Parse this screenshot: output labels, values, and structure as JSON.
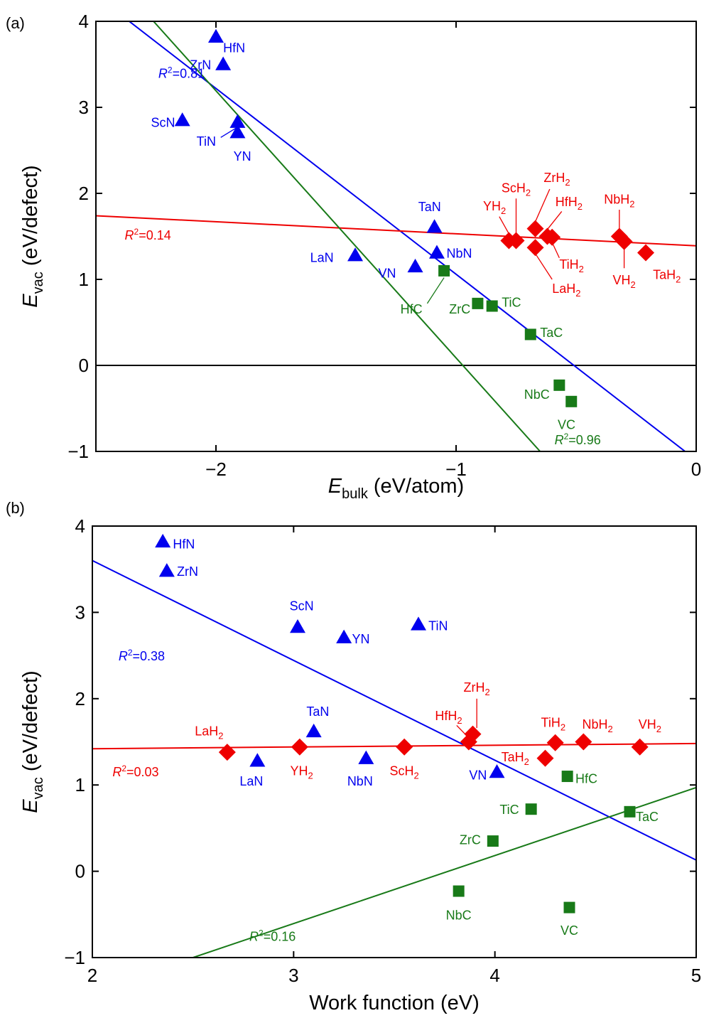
{
  "colors": {
    "nitride": "#0000ee",
    "hydride": "#ee0000",
    "carbide": "#187a18"
  },
  "chart_data": [
    {
      "panel": "(a)",
      "type": "scatter",
      "xlabel_main": "E",
      "xlabel_sub": "bulk",
      "xlabel_unit": " (eV/atom)",
      "ylabel_main": "E",
      "ylabel_sub": "vac",
      "ylabel_unit": " (eV/defect)",
      "xlim": [
        -2.5,
        0
      ],
      "ylim": [
        -1,
        4
      ],
      "xticks": [
        {
          "v": -2,
          "t": "−2"
        },
        {
          "v": -1,
          "t": "−1"
        },
        {
          "v": 0,
          "t": "0"
        }
      ],
      "yticks": [
        {
          "v": -1,
          "t": "−1"
        },
        {
          "v": 0,
          "t": "0"
        },
        {
          "v": 1,
          "t": "1"
        },
        {
          "v": 2,
          "t": "2"
        },
        {
          "v": 3,
          "t": "3"
        },
        {
          "v": 4,
          "t": "4"
        }
      ],
      "zero_line": true,
      "series": [
        {
          "group": "nitride",
          "marker": "triangle",
          "fit": [
            -2.5,
            4.3,
            0,
            -1.1
          ],
          "r2": "0.81",
          "r2_pos": [
            -2.24,
            3.4
          ],
          "points": [
            {
              "label": "HfN",
              "x": -2.0,
              "y": 3.82,
              "lx": -1.97,
              "ly": 3.7,
              "anchor": "start"
            },
            {
              "label": "ZrN",
              "x": -1.97,
              "y": 3.5,
              "lx": -2.02,
              "ly": 3.5,
              "anchor": "end"
            },
            {
              "label": "ScN",
              "x": -2.14,
              "y": 2.85,
              "lx": -2.17,
              "ly": 2.83,
              "anchor": "end"
            },
            {
              "label": "TiN",
              "x": -1.91,
              "y": 2.83,
              "lx": -2.0,
              "ly": 2.61,
              "anchor": "end",
              "leader": [
                -1.98,
                2.65,
                -1.91,
                2.77
              ]
            },
            {
              "label": "YN",
              "x": -1.91,
              "y": 2.71,
              "lx": -1.89,
              "ly": 2.44,
              "anchor": "middle"
            },
            {
              "label": "TaN",
              "x": -1.09,
              "y": 1.61,
              "lx": -1.11,
              "ly": 1.85,
              "anchor": "middle"
            },
            {
              "label": "LaN",
              "x": -1.42,
              "y": 1.28,
              "lx": -1.51,
              "ly": 1.26,
              "anchor": "end"
            },
            {
              "label": "NbN",
              "x": -1.08,
              "y": 1.31,
              "lx": -1.04,
              "ly": 1.31,
              "anchor": "start"
            },
            {
              "label": "VN",
              "x": -1.17,
              "y": 1.15,
              "lx": -1.25,
              "ly": 1.08,
              "anchor": "end"
            }
          ]
        },
        {
          "group": "hydride",
          "marker": "diamond",
          "fit": [
            -2.5,
            1.74,
            0,
            1.39
          ],
          "r2": "0.14",
          "r2_pos": [
            -2.38,
            1.52
          ],
          "points": [
            {
              "label": "YH",
              "sub": "2",
              "x": -0.78,
              "y": 1.45,
              "lx": -0.84,
              "ly": 1.86,
              "anchor": "middle",
              "leader": [
                -0.82,
                1.73,
                -0.78,
                1.53
              ]
            },
            {
              "label": "ScH",
              "sub": "2",
              "x": -0.75,
              "y": 1.45,
              "lx": -0.75,
              "ly": 2.07,
              "anchor": "middle",
              "leader": [
                -0.75,
                1.94,
                -0.75,
                1.53
              ]
            },
            {
              "label": "ZrH",
              "sub": "2",
              "x": -0.67,
              "y": 1.59,
              "lx": -0.58,
              "ly": 2.19,
              "anchor": "middle",
              "leader": [
                -0.61,
                2.05,
                -0.67,
                1.67
              ]
            },
            {
              "label": "LaH",
              "sub": "2",
              "x": -0.67,
              "y": 1.37,
              "lx": -0.6,
              "ly": 0.9,
              "anchor": "start",
              "leader": [
                -0.6,
                1.0,
                -0.67,
                1.3
              ]
            },
            {
              "label": "HfH",
              "sub": "2",
              "x": -0.62,
              "y": 1.5,
              "lx": -0.53,
              "ly": 1.91,
              "anchor": "middle",
              "leader": [
                -0.56,
                1.79,
                -0.62,
                1.58
              ]
            },
            {
              "label": "TiH",
              "sub": "2",
              "x": -0.6,
              "y": 1.49,
              "lx": -0.57,
              "ly": 1.18,
              "anchor": "start",
              "leader": [
                -0.57,
                1.25,
                -0.6,
                1.43
              ]
            },
            {
              "label": "NbH",
              "sub": "2",
              "x": -0.32,
              "y": 1.5,
              "lx": -0.32,
              "ly": 1.94,
              "anchor": "middle",
              "leader": [
                -0.32,
                1.81,
                -0.32,
                1.58
              ]
            },
            {
              "label": "VH",
              "sub": "2",
              "x": -0.3,
              "y": 1.44,
              "lx": -0.3,
              "ly": 1.0,
              "anchor": "middle",
              "leader": [
                -0.3,
                1.13,
                -0.3,
                1.37
              ]
            },
            {
              "label": "TaH",
              "sub": "2",
              "x": -0.21,
              "y": 1.31,
              "lx": -0.18,
              "ly": 1.06,
              "anchor": "start"
            }
          ]
        },
        {
          "group": "carbide",
          "marker": "square",
          "fit": [
            -2.26,
            4.0,
            -0.65,
            -1.0
          ],
          "r2": "0.96",
          "r2_pos": [
            -0.59,
            -0.86
          ],
          "points": [
            {
              "label": "HfC",
              "x": -1.05,
              "y": 1.1,
              "lx": -1.14,
              "ly": 0.66,
              "anchor": "end",
              "leader": [
                -1.12,
                0.72,
                -1.05,
                1.02
              ]
            },
            {
              "label": "ZrC",
              "x": -0.91,
              "y": 0.72,
              "lx": -0.94,
              "ly": 0.66,
              "anchor": "end"
            },
            {
              "label": "TiC",
              "x": -0.85,
              "y": 0.69,
              "lx": -0.81,
              "ly": 0.74,
              "anchor": "start"
            },
            {
              "label": "TaC",
              "x": -0.69,
              "y": 0.36,
              "lx": -0.65,
              "ly": 0.39,
              "anchor": "start"
            },
            {
              "label": "NbC",
              "x": -0.57,
              "y": -0.23,
              "lx": -0.61,
              "ly": -0.33,
              "anchor": "end"
            },
            {
              "label": "VC",
              "x": -0.52,
              "y": -0.42,
              "lx": -0.54,
              "ly": -0.68,
              "anchor": "middle"
            }
          ]
        }
      ]
    },
    {
      "panel": "(b)",
      "type": "scatter",
      "xlabel_main": "Work function (eV)",
      "xlabel_sub": "",
      "xlabel_unit": "",
      "ylabel_main": "E",
      "ylabel_sub": "vac",
      "ylabel_unit": " (eV/defect)",
      "xlim": [
        2,
        5
      ],
      "ylim": [
        -1,
        4
      ],
      "xticks": [
        {
          "v": 2,
          "t": "2"
        },
        {
          "v": 3,
          "t": "3"
        },
        {
          "v": 4,
          "t": "4"
        },
        {
          "v": 5,
          "t": "5"
        }
      ],
      "yticks": [
        {
          "v": -1,
          "t": "−1"
        },
        {
          "v": 0,
          "t": "0"
        },
        {
          "v": 1,
          "t": "1"
        },
        {
          "v": 2,
          "t": "2"
        },
        {
          "v": 3,
          "t": "3"
        },
        {
          "v": 4,
          "t": "4"
        }
      ],
      "zero_line": false,
      "series": [
        {
          "group": "nitride",
          "marker": "triangle",
          "fit": [
            2,
            3.6,
            5,
            0.13
          ],
          "r2": "0.38",
          "r2_pos": [
            2.13,
            2.5
          ],
          "points": [
            {
              "label": "HfN",
              "x": 2.35,
              "y": 3.82,
              "lx": 2.4,
              "ly": 3.8,
              "anchor": "start"
            },
            {
              "label": "ZrN",
              "x": 2.37,
              "y": 3.48,
              "lx": 2.42,
              "ly": 3.48,
              "anchor": "start"
            },
            {
              "label": "ScN",
              "x": 3.02,
              "y": 2.83,
              "lx": 3.04,
              "ly": 3.08,
              "anchor": "middle"
            },
            {
              "label": "YN",
              "x": 3.25,
              "y": 2.71,
              "lx": 3.29,
              "ly": 2.7,
              "anchor": "start"
            },
            {
              "label": "TiN",
              "x": 3.62,
              "y": 2.86,
              "lx": 3.67,
              "ly": 2.85,
              "anchor": "start"
            },
            {
              "label": "TaN",
              "x": 3.1,
              "y": 1.62,
              "lx": 3.12,
              "ly": 1.86,
              "anchor": "middle"
            },
            {
              "label": "LaN",
              "x": 2.82,
              "y": 1.28,
              "lx": 2.79,
              "ly": 1.05,
              "anchor": "middle"
            },
            {
              "label": "NbN",
              "x": 3.36,
              "y": 1.31,
              "lx": 3.33,
              "ly": 1.05,
              "anchor": "middle"
            },
            {
              "label": "VN",
              "x": 4.01,
              "y": 1.15,
              "lx": 3.96,
              "ly": 1.12,
              "anchor": "end"
            }
          ]
        },
        {
          "group": "hydride",
          "marker": "diamond",
          "fit": [
            2,
            1.42,
            5,
            1.48
          ],
          "r2": "0.03",
          "r2_pos": [
            2.1,
            1.16
          ],
          "points": [
            {
              "label": "LaH",
              "sub": "2",
              "x": 2.67,
              "y": 1.38,
              "lx": 2.58,
              "ly": 1.63,
              "anchor": "middle"
            },
            {
              "label": "YH",
              "sub": "2",
              "x": 3.03,
              "y": 1.44,
              "lx": 3.04,
              "ly": 1.17,
              "anchor": "middle"
            },
            {
              "label": "ScH",
              "sub": "2",
              "x": 3.55,
              "y": 1.44,
              "lx": 3.55,
              "ly": 1.17,
              "anchor": "middle"
            },
            {
              "label": "HfH",
              "sub": "2",
              "x": 3.87,
              "y": 1.5,
              "lx": 3.77,
              "ly": 1.81,
              "anchor": "middle",
              "leader": [
                3.81,
                1.69,
                3.86,
                1.57
              ]
            },
            {
              "label": "ZrH",
              "sub": "2",
              "x": 3.89,
              "y": 1.59,
              "lx": 3.91,
              "ly": 2.14,
              "anchor": "middle",
              "leader": [
                3.91,
                2.0,
                3.91,
                1.66
              ]
            },
            {
              "label": "TaH",
              "sub": "2",
              "x": 4.25,
              "y": 1.31,
              "lx": 4.17,
              "ly": 1.33,
              "anchor": "end"
            },
            {
              "label": "TiH",
              "sub": "2",
              "x": 4.3,
              "y": 1.49,
              "lx": 4.29,
              "ly": 1.73,
              "anchor": "middle"
            },
            {
              "label": "NbH",
              "sub": "2",
              "x": 4.44,
              "y": 1.5,
              "lx": 4.51,
              "ly": 1.71,
              "anchor": "middle"
            },
            {
              "label": "VH",
              "sub": "2",
              "x": 4.72,
              "y": 1.44,
              "lx": 4.77,
              "ly": 1.71,
              "anchor": "middle"
            }
          ]
        },
        {
          "group": "carbide",
          "marker": "square",
          "fit": [
            2.5,
            -1.0,
            5,
            0.97
          ],
          "r2": "0.16",
          "r2_pos": [
            2.78,
            -0.75
          ],
          "points": [
            {
              "label": "HfC",
              "x": 4.36,
              "y": 1.1,
              "lx": 4.4,
              "ly": 1.08,
              "anchor": "start"
            },
            {
              "label": "TiC",
              "x": 4.18,
              "y": 0.72,
              "lx": 4.12,
              "ly": 0.72,
              "anchor": "end"
            },
            {
              "label": "TaC",
              "x": 4.67,
              "y": 0.69,
              "lx": 4.7,
              "ly": 0.64,
              "anchor": "start"
            },
            {
              "label": "ZrC",
              "x": 3.99,
              "y": 0.35,
              "lx": 3.93,
              "ly": 0.37,
              "anchor": "end"
            },
            {
              "label": "NbC",
              "x": 3.82,
              "y": -0.23,
              "lx": 3.82,
              "ly": -0.5,
              "anchor": "middle"
            },
            {
              "label": "VC",
              "x": 4.37,
              "y": -0.42,
              "lx": 4.37,
              "ly": -0.68,
              "anchor": "middle"
            }
          ]
        }
      ]
    }
  ]
}
